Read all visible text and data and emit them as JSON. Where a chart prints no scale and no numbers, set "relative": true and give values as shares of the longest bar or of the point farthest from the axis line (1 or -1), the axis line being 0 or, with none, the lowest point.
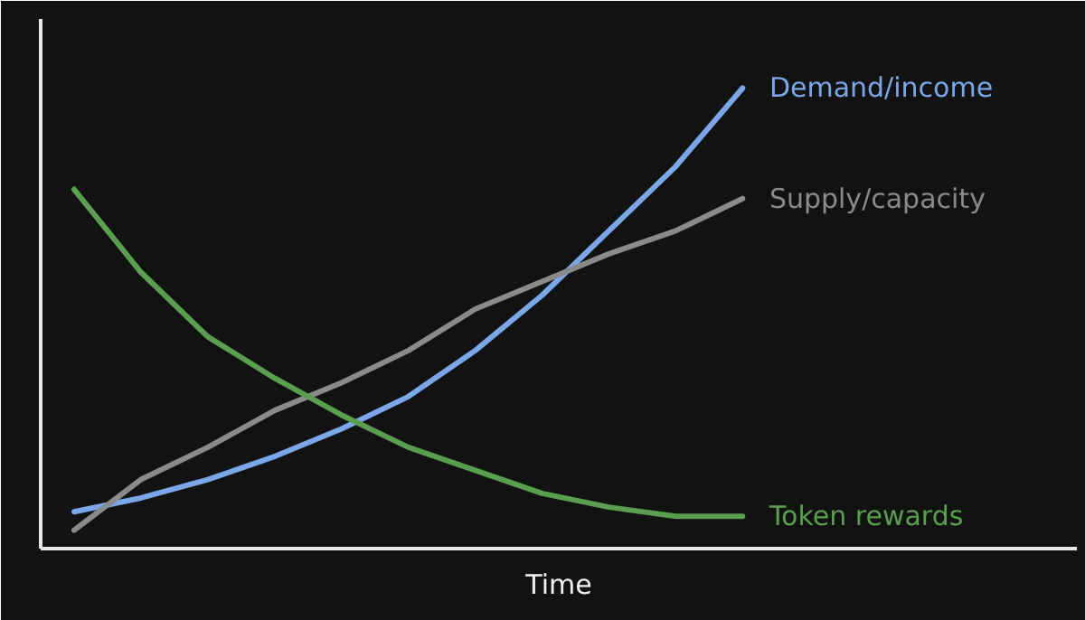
{
  "chart_data": {
    "type": "line",
    "relative": true,
    "xlabel": "Time",
    "tick_labels": false,
    "grid": false,
    "legend": false,
    "marker": "none",
    "line_style": "solid",
    "categories": [
      null,
      null,
      null,
      null,
      null,
      null,
      null,
      null,
      null,
      null,
      null
    ],
    "series": [
      {
        "name": "Demand/income",
        "color": "#7ba7e8",
        "values": [
          0.08,
          0.11,
          0.15,
          0.2,
          0.26,
          0.33,
          0.43,
          0.55,
          0.69,
          0.83,
          1.0
        ]
      },
      {
        "name": "Supply/capacity",
        "color": "#8a8a8a",
        "values": [
          0.04,
          0.15,
          0.22,
          0.3,
          0.36,
          0.43,
          0.52,
          0.58,
          0.64,
          0.69,
          0.76
        ]
      },
      {
        "name": "Token rewards",
        "color": "#5a9e4f",
        "values": [
          0.78,
          0.6,
          0.46,
          0.37,
          0.29,
          0.22,
          0.17,
          0.12,
          0.09,
          0.07,
          0.07
        ]
      }
    ]
  }
}
